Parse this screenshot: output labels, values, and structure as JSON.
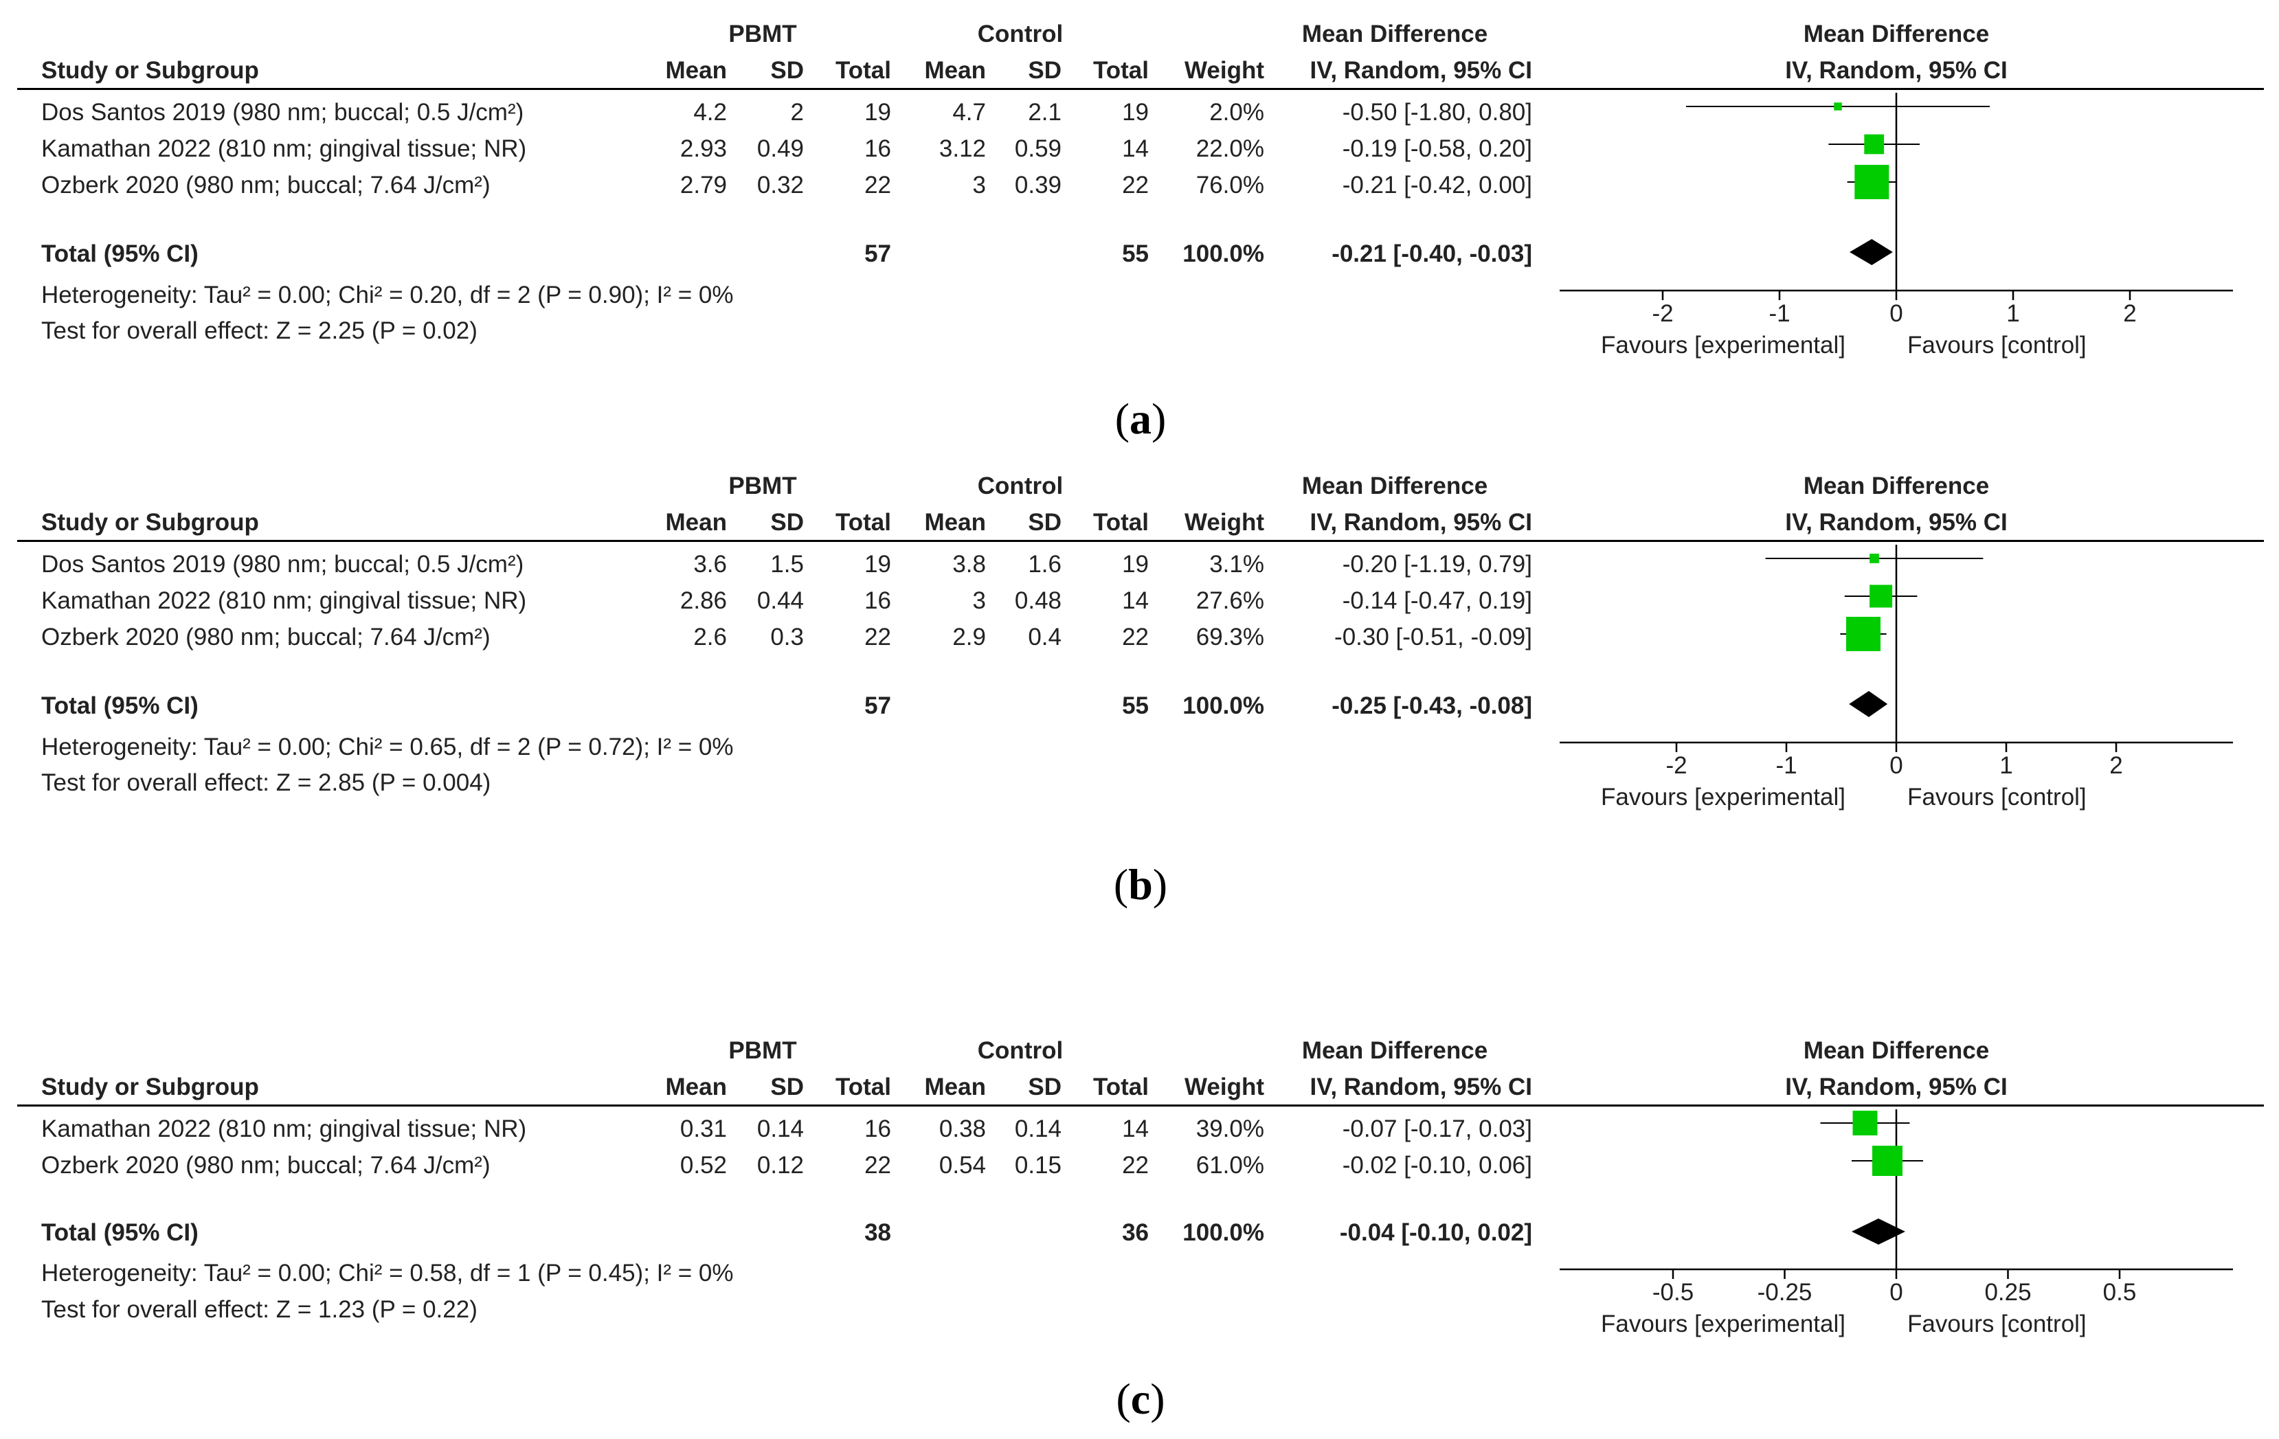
{
  "headers": {
    "study": "Study or Subgroup",
    "group_pbmt": "PBMT",
    "group_control": "Control",
    "mean": "Mean",
    "sd": "SD",
    "total": "Total",
    "weight": "Weight",
    "md_title": "Mean Difference",
    "md_method": "IV, Random, 95% CI"
  },
  "chart_data": [
    {
      "type": "forest",
      "panel_label": "a",
      "studies": [
        {
          "name": "Dos Santos 2019 (980 nm; buccal; 0.5 J/cm²)",
          "pbmt_mean": "4.2",
          "pbmt_sd": "2",
          "pbmt_total": "19",
          "ctrl_mean": "4.7",
          "ctrl_sd": "2.1",
          "ctrl_total": "19",
          "weight": "2.0%",
          "ci_text": "-0.50 [-1.80, 0.80]",
          "md": -0.5,
          "lo": -1.8,
          "hi": 0.8,
          "w": 2.0
        },
        {
          "name": "Kamathan 2022 (810 nm; gingival tissue; NR)",
          "pbmt_mean": "2.93",
          "pbmt_sd": "0.49",
          "pbmt_total": "16",
          "ctrl_mean": "3.12",
          "ctrl_sd": "0.59",
          "ctrl_total": "14",
          "weight": "22.0%",
          "ci_text": "-0.19 [-0.58, 0.20]",
          "md": -0.19,
          "lo": -0.58,
          "hi": 0.2,
          "w": 22.0
        },
        {
          "name": "Ozberk 2020 (980 nm; buccal; 7.64 J/cm²)",
          "pbmt_mean": "2.79",
          "pbmt_sd": "0.32",
          "pbmt_total": "22",
          "ctrl_mean": "3",
          "ctrl_sd": "0.39",
          "ctrl_total": "22",
          "weight": "76.0%",
          "ci_text": "-0.21 [-0.42, 0.00]",
          "md": -0.21,
          "lo": -0.42,
          "hi": 0.0,
          "w": 76.0
        }
      ],
      "total": {
        "label": "Total (95% CI)",
        "pbmt_total": "57",
        "ctrl_total": "55",
        "weight": "100.0%",
        "ci_text": "-0.21 [-0.40, -0.03]",
        "md": -0.21,
        "lo": -0.4,
        "hi": -0.03
      },
      "heterogeneity": "Heterogeneity: Tau² = 0.00; Chi² = 0.20, df = 2 (P = 0.90); I² = 0%",
      "overall_effect": "Test for overall effect: Z = 2.25 (P = 0.02)",
      "xlim": [
        -2,
        2
      ],
      "ticks": [
        -2,
        -1,
        0,
        1,
        2
      ],
      "tick_labels": [
        "-2",
        "-1",
        "0",
        "1",
        "2"
      ],
      "favours_left": "Favours [experimental]",
      "favours_right": "Favours [control]"
    },
    {
      "type": "forest",
      "panel_label": "b",
      "studies": [
        {
          "name": "Dos Santos 2019 (980 nm; buccal; 0.5 J/cm²)",
          "pbmt_mean": "3.6",
          "pbmt_sd": "1.5",
          "pbmt_total": "19",
          "ctrl_mean": "3.8",
          "ctrl_sd": "1.6",
          "ctrl_total": "19",
          "weight": "3.1%",
          "ci_text": "-0.20 [-1.19, 0.79]",
          "md": -0.2,
          "lo": -1.19,
          "hi": 0.79,
          "w": 3.1
        },
        {
          "name": "Kamathan 2022 (810 nm; gingival tissue; NR)",
          "pbmt_mean": "2.86",
          "pbmt_sd": "0.44",
          "pbmt_total": "16",
          "ctrl_mean": "3",
          "ctrl_sd": "0.48",
          "ctrl_total": "14",
          "weight": "27.6%",
          "ci_text": "-0.14 [-0.47, 0.19]",
          "md": -0.14,
          "lo": -0.47,
          "hi": 0.19,
          "w": 27.6
        },
        {
          "name": "Ozberk 2020 (980 nm; buccal; 7.64 J/cm²)",
          "pbmt_mean": "2.6",
          "pbmt_sd": "0.3",
          "pbmt_total": "22",
          "ctrl_mean": "2.9",
          "ctrl_sd": "0.4",
          "ctrl_total": "22",
          "weight": "69.3%",
          "ci_text": "-0.30 [-0.51, -0.09]",
          "md": -0.3,
          "lo": -0.51,
          "hi": -0.09,
          "w": 69.3
        }
      ],
      "total": {
        "label": "Total (95% CI)",
        "pbmt_total": "57",
        "ctrl_total": "55",
        "weight": "100.0%",
        "ci_text": "-0.25 [-0.43, -0.08]",
        "md": -0.25,
        "lo": -0.43,
        "hi": -0.08
      },
      "heterogeneity": "Heterogeneity: Tau² = 0.00; Chi² = 0.65, df = 2 (P = 0.72); I² = 0%",
      "overall_effect": "Test for overall effect: Z = 2.85 (P = 0.004)",
      "xlim": [
        -2,
        2
      ],
      "ticks": [
        -2,
        -1,
        0,
        1,
        2
      ],
      "tick_labels": [
        "-2",
        "-1",
        "0",
        "1",
        "2"
      ],
      "favours_left": "Favours [experimental]",
      "favours_right": "Favours [control]"
    },
    {
      "type": "forest",
      "panel_label": "c",
      "studies": [
        {
          "name": "Kamathan 2022 (810 nm; gingival tissue; NR)",
          "pbmt_mean": "0.31",
          "pbmt_sd": "0.14",
          "pbmt_total": "16",
          "ctrl_mean": "0.38",
          "ctrl_sd": "0.14",
          "ctrl_total": "14",
          "weight": "39.0%",
          "ci_text": "-0.07 [-0.17, 0.03]",
          "md": -0.07,
          "lo": -0.17,
          "hi": 0.03,
          "w": 39.0
        },
        {
          "name": "Ozberk 2020 (980 nm; buccal; 7.64 J/cm²)",
          "pbmt_mean": "0.52",
          "pbmt_sd": "0.12",
          "pbmt_total": "22",
          "ctrl_mean": "0.54",
          "ctrl_sd": "0.15",
          "ctrl_total": "22",
          "weight": "61.0%",
          "ci_text": "-0.02 [-0.10, 0.06]",
          "md": -0.02,
          "lo": -0.1,
          "hi": 0.06,
          "w": 61.0
        }
      ],
      "total": {
        "label": "Total (95% CI)",
        "pbmt_total": "38",
        "ctrl_total": "36",
        "weight": "100.0%",
        "ci_text": "-0.04 [-0.10, 0.02]",
        "md": -0.04,
        "lo": -0.1,
        "hi": 0.02
      },
      "heterogeneity": "Heterogeneity: Tau² = 0.00; Chi² = 0.58, df = 1 (P = 0.45); I² = 0%",
      "overall_effect": "Test for overall effect: Z = 1.23 (P = 0.22)",
      "xlim": [
        -0.5,
        0.5
      ],
      "ticks": [
        -0.5,
        -0.25,
        0,
        0.25,
        0.5
      ],
      "tick_labels": [
        "-0.5",
        "-0.25",
        "0",
        "0.25",
        "0.5"
      ],
      "favours_left": "Favours [experimental]",
      "favours_right": "Favours [control]"
    }
  ],
  "colors": {
    "square": "#00cc00",
    "diamond": "#000000",
    "axis": "#000000",
    "text": "#222222"
  }
}
